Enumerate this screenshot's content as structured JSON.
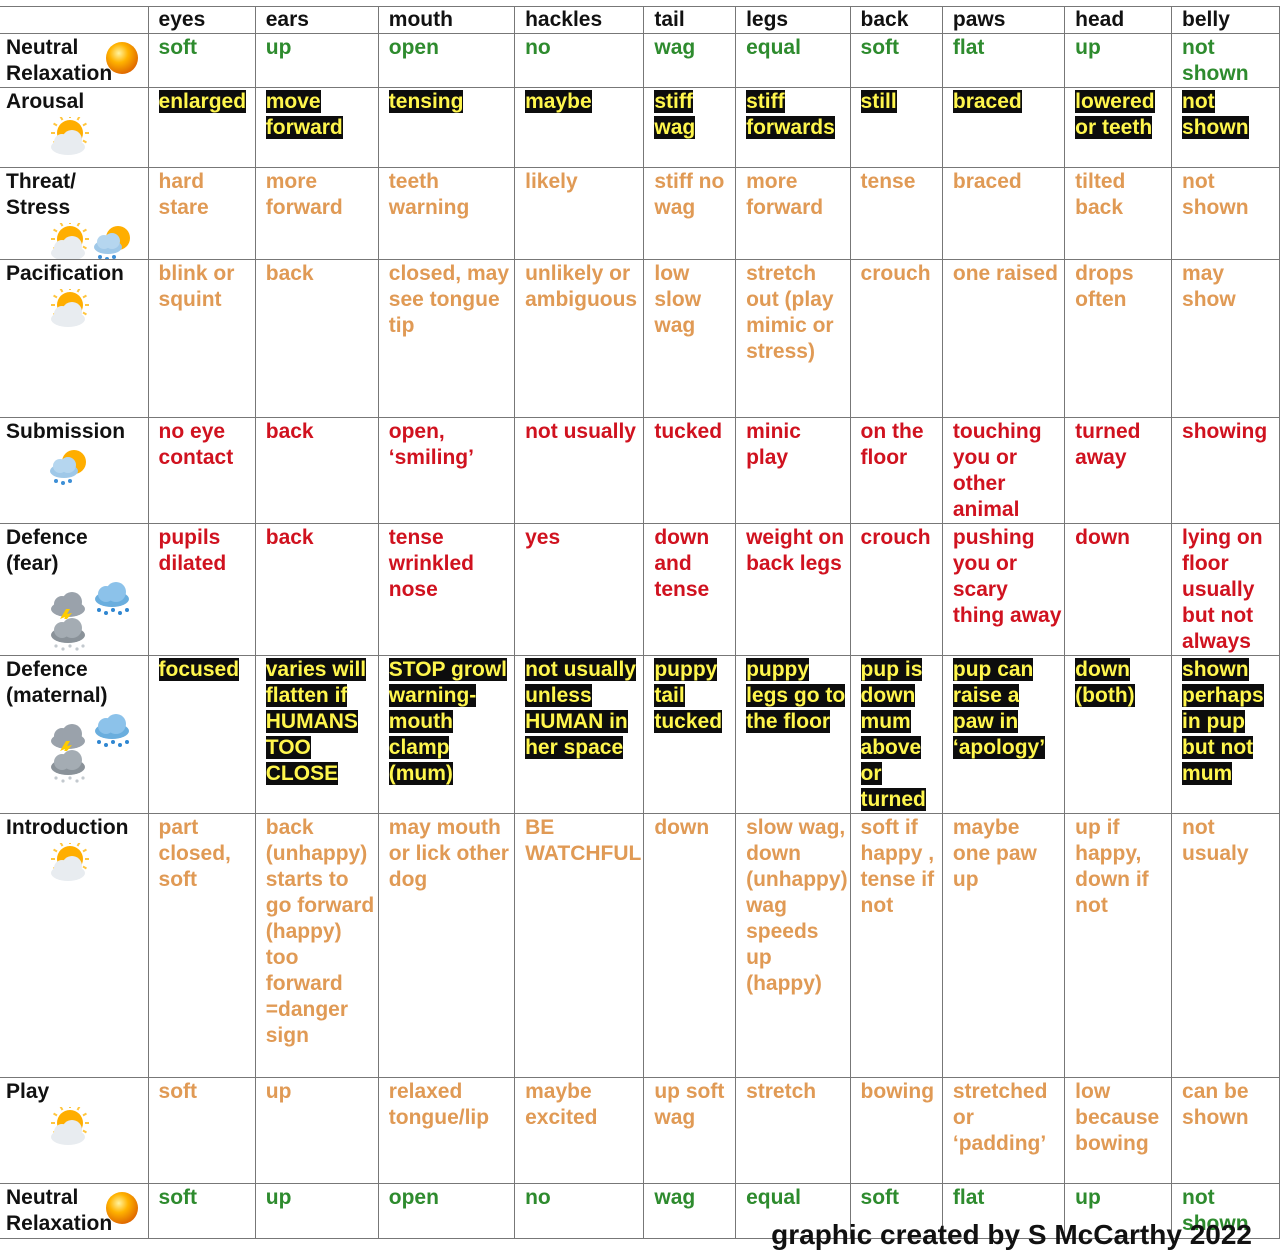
{
  "columns": [
    "",
    "eyes",
    "ears",
    "mouth",
    "hackles",
    "tail",
    "legs",
    "back",
    "paws",
    "head",
    "belly"
  ],
  "rows": [
    {
      "label": "Neutral Relaxation",
      "icons": [
        "sun-icon"
      ],
      "style": "green",
      "cells": [
        "soft",
        "up",
        "open",
        "no",
        "wag",
        "equal",
        "soft",
        "flat",
        "up",
        "not shown"
      ]
    },
    {
      "label": "Arousal",
      "icons": [
        "sun-cloud-icon"
      ],
      "style": "hl",
      "cells": [
        "enlarged",
        "move forward",
        "tensing",
        "maybe",
        "stiff wag",
        "stiff forwards",
        "still",
        "braced",
        "lowered or teeth",
        "not shown"
      ]
    },
    {
      "label": "Threat/ Stress",
      "icons": [
        "sun-cloud-icon",
        "rain-sun-icon"
      ],
      "style": "orange",
      "cells": [
        "hard stare",
        "more forward",
        "teeth warning",
        "likely",
        "stiff no wag",
        "more forward",
        "tense",
        "braced",
        "tilted back",
        "not shown"
      ]
    },
    {
      "label": "Pacification",
      "icons": [
        "sun-cloud-icon"
      ],
      "style": "orange",
      "cells": [
        "blink or squint",
        "back",
        "closed, may see tongue tip",
        "unlikely or ambiguous",
        "low slow wag",
        "stretch out (play mimic or stress)",
        "crouch",
        "one raised",
        "drops often",
        "may show"
      ]
    },
    {
      "label": "Submission",
      "icons": [
        "rain-sun-icon"
      ],
      "style": "red",
      "cells": [
        "no eye contact",
        "back",
        "open, ‘smiling’",
        "not usually",
        "tucked",
        "minic play",
        "on the floor",
        "touching you or other animal",
        "turned away",
        "showing"
      ]
    },
    {
      "label": "Defence (fear)",
      "icons": [
        "storm-icon",
        "rain-icon",
        "snow-icon"
      ],
      "style": "red",
      "cells": [
        "pupils dilated",
        "back",
        "tense wrinkled nose",
        "yes",
        "down and tense",
        "weight on back legs",
        "crouch",
        "pushing you or scary thing away",
        "down",
        "lying on floor usually but not always"
      ]
    },
    {
      "label": "Defence (maternal)",
      "icons": [
        "storm-icon",
        "rain-icon",
        "snow-icon"
      ],
      "style": "hl",
      "cells": [
        "focused",
        "varies will flatten if HUMANS TOO CLOSE",
        "STOP growl warning-mouth clamp (mum)",
        "not usually unless HUMAN in her space",
        "puppy tail tucked",
        "puppy legs go to the floor",
        "pup is down mum above or turned",
        "pup can raise a paw in ‘apology’",
        "down (both)",
        "shown perhaps in pup but not mum"
      ]
    },
    {
      "label": "Introduction",
      "icons": [
        "sun-cloud-icon"
      ],
      "style": "orange",
      "cells": [
        "part closed, soft",
        "back (unhappy) starts to go forward (happy) too forward =danger sign",
        "may mouth or lick other dog",
        "BE WATCHFUL",
        "down",
        "slow wag, down (unhappy) wag speeds up (happy)",
        "soft if happy , tense if not",
        "maybe one paw up",
        "up if happy, down if not",
        "not usualy"
      ]
    },
    {
      "label": "Play",
      "icons": [
        "sun-cloud-icon"
      ],
      "style": "orange",
      "cells": [
        "soft",
        "up",
        "relaxed tongue/lip",
        "maybe excited",
        "up soft wag",
        "stretch",
        "bowing",
        "stretched or ‘padding’",
        "low because bowing",
        "can be shown"
      ]
    },
    {
      "label": "Neutral Relaxation",
      "icons": [
        "sun-icon"
      ],
      "style": "green",
      "cells": [
        "soft",
        "up",
        "open",
        "no",
        "wag",
        "equal",
        "soft",
        "flat",
        "up",
        "not shown"
      ]
    }
  ],
  "credit": "graphic created by S McCarthy 2022",
  "colors": {
    "green": "#2e8b2e",
    "orange": "#e09a55",
    "red": "#d0121f",
    "highlight_bg": "#0d0d0d",
    "highlight_text": "#fff64d"
  }
}
